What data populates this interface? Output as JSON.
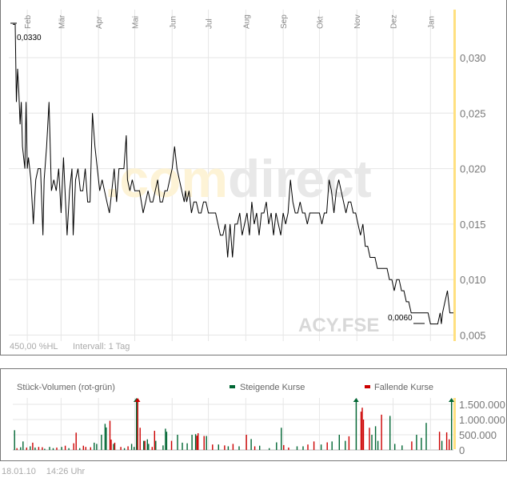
{
  "chart_data": [
    {
      "type": "line",
      "title": "",
      "months": [
        "Feb",
        "Mär",
        "Apr",
        "Mai",
        "Jun",
        "Jul",
        "Aug",
        "Sep",
        "Okt",
        "Nov",
        "Dez",
        "Jan"
      ],
      "month_days": [
        12,
        40,
        71,
        101,
        132,
        162,
        193,
        224,
        254,
        285,
        315,
        346
      ],
      "y_ticks": [
        0.03,
        0.025,
        0.02,
        0.015,
        0.01,
        0.005
      ],
      "y_tick_labels": [
        "0,030",
        "0,025",
        "0,020",
        "0,015",
        "0,010",
        "0,005"
      ],
      "ylim": [
        0.0045,
        0.0345
      ],
      "xlim": [
        0,
        365
      ],
      "grid": true,
      "x_unit": "days since start",
      "points": [
        [
          0,
          0.033
        ],
        [
          2,
          0.033
        ],
        [
          3,
          0.026
        ],
        [
          4,
          0.029
        ],
        [
          5,
          0.027
        ],
        [
          6,
          0.024
        ],
        [
          7,
          0.026
        ],
        [
          8,
          0.022
        ],
        [
          10,
          0.02
        ],
        [
          11,
          0.026
        ],
        [
          12,
          0.02
        ],
        [
          13,
          0.021
        ],
        [
          15,
          0.019
        ],
        [
          17,
          0.015
        ],
        [
          19,
          0.019
        ],
        [
          21,
          0.02
        ],
        [
          23,
          0.02
        ],
        [
          25,
          0.014
        ],
        [
          26,
          0.019
        ],
        [
          28,
          0.022
        ],
        [
          30,
          0.026
        ],
        [
          32,
          0.018
        ],
        [
          34,
          0.019
        ],
        [
          36,
          0.018
        ],
        [
          38,
          0.02
        ],
        [
          40,
          0.016
        ],
        [
          42,
          0.021
        ],
        [
          45,
          0.014
        ],
        [
          47,
          0.018
        ],
        [
          49,
          0.02
        ],
        [
          50,
          0.014
        ],
        [
          52,
          0.019
        ],
        [
          54,
          0.02
        ],
        [
          56,
          0.018
        ],
        [
          58,
          0.018
        ],
        [
          60,
          0.02
        ],
        [
          62,
          0.017
        ],
        [
          64,
          0.017
        ],
        [
          66,
          0.025
        ],
        [
          68,
          0.022
        ],
        [
          70,
          0.02
        ],
        [
          72,
          0.018
        ],
        [
          74,
          0.019
        ],
        [
          76,
          0.018
        ],
        [
          78,
          0.017
        ],
        [
          80,
          0.016
        ],
        [
          82,
          0.018
        ],
        [
          84,
          0.02
        ],
        [
          86,
          0.017
        ],
        [
          88,
          0.02
        ],
        [
          90,
          0.02
        ],
        [
          92,
          0.02
        ],
        [
          94,
          0.023
        ],
        [
          95,
          0.019
        ],
        [
          97,
          0.018
        ],
        [
          99,
          0.019
        ],
        [
          101,
          0.018
        ],
        [
          103,
          0.018
        ],
        [
          105,
          0.018
        ],
        [
          108,
          0.016
        ],
        [
          110,
          0.017
        ],
        [
          112,
          0.018
        ],
        [
          114,
          0.017
        ],
        [
          116,
          0.017
        ],
        [
          118,
          0.018
        ],
        [
          120,
          0.019
        ],
        [
          122,
          0.017
        ],
        [
          124,
          0.017
        ],
        [
          126,
          0.018
        ],
        [
          128,
          0.018
        ],
        [
          130,
          0.019
        ],
        [
          132,
          0.02
        ],
        [
          134,
          0.022
        ],
        [
          136,
          0.02
        ],
        [
          138,
          0.019
        ],
        [
          140,
          0.018
        ],
        [
          142,
          0.017
        ],
        [
          143,
          0.018
        ],
        [
          144,
          0.017
        ],
        [
          146,
          0.018
        ],
        [
          148,
          0.016
        ],
        [
          150,
          0.017
        ],
        [
          152,
          0.017
        ],
        [
          154,
          0.016
        ],
        [
          156,
          0.016
        ],
        [
          158,
          0.017
        ],
        [
          160,
          0.017
        ],
        [
          162,
          0.016
        ],
        [
          164,
          0.016
        ],
        [
          166,
          0.016
        ],
        [
          168,
          0.016
        ],
        [
          170,
          0.015
        ],
        [
          172,
          0.014
        ],
        [
          174,
          0.014
        ],
        [
          176,
          0.015
        ],
        [
          178,
          0.012
        ],
        [
          180,
          0.015
        ],
        [
          182,
          0.012
        ],
        [
          184,
          0.015
        ],
        [
          186,
          0.015
        ],
        [
          188,
          0.016
        ],
        [
          190,
          0.014
        ],
        [
          192,
          0.015
        ],
        [
          194,
          0.016
        ],
        [
          196,
          0.014
        ],
        [
          198,
          0.017
        ],
        [
          200,
          0.015
        ],
        [
          202,
          0.016
        ],
        [
          204,
          0.014
        ],
        [
          206,
          0.016
        ],
        [
          208,
          0.016
        ],
        [
          210,
          0.017
        ],
        [
          212,
          0.015
        ],
        [
          214,
          0.016
        ],
        [
          216,
          0.014
        ],
        [
          218,
          0.016
        ],
        [
          220,
          0.015
        ],
        [
          222,
          0.014
        ],
        [
          224,
          0.016
        ],
        [
          226,
          0.015
        ],
        [
          228,
          0.016
        ],
        [
          230,
          0.019
        ],
        [
          232,
          0.017
        ],
        [
          234,
          0.016
        ],
        [
          236,
          0.016
        ],
        [
          238,
          0.017
        ],
        [
          240,
          0.016
        ],
        [
          242,
          0.016
        ],
        [
          244,
          0.015
        ],
        [
          246,
          0.016
        ],
        [
          248,
          0.016
        ],
        [
          250,
          0.016
        ],
        [
          252,
          0.016
        ],
        [
          254,
          0.016
        ],
        [
          256,
          0.015
        ],
        [
          258,
          0.016
        ],
        [
          260,
          0.016
        ],
        [
          262,
          0.019
        ],
        [
          264,
          0.018
        ],
        [
          266,
          0.016
        ],
        [
          268,
          0.018
        ],
        [
          270,
          0.019
        ],
        [
          272,
          0.018
        ],
        [
          274,
          0.017
        ],
        [
          276,
          0.016
        ],
        [
          278,
          0.017
        ],
        [
          280,
          0.017
        ],
        [
          282,
          0.016
        ],
        [
          284,
          0.016
        ],
        [
          286,
          0.015
        ],
        [
          288,
          0.014
        ],
        [
          290,
          0.015
        ],
        [
          292,
          0.013
        ],
        [
          294,
          0.013
        ],
        [
          296,
          0.012
        ],
        [
          298,
          0.012
        ],
        [
          300,
          0.012
        ],
        [
          302,
          0.011
        ],
        [
          304,
          0.011
        ],
        [
          306,
          0.011
        ],
        [
          308,
          0.011
        ],
        [
          310,
          0.011
        ],
        [
          312,
          0.01
        ],
        [
          314,
          0.01
        ],
        [
          316,
          0.009
        ],
        [
          318,
          0.01
        ],
        [
          320,
          0.01
        ],
        [
          322,
          0.009
        ],
        [
          324,
          0.009
        ],
        [
          326,
          0.008
        ],
        [
          328,
          0.008
        ],
        [
          330,
          0.007
        ],
        [
          332,
          0.007
        ],
        [
          334,
          0.007
        ],
        [
          336,
          0.007
        ],
        [
          338,
          0.007
        ],
        [
          340,
          0.007
        ],
        [
          342,
          0.007
        ],
        [
          344,
          0.007
        ],
        [
          346,
          0.006
        ],
        [
          348,
          0.006
        ],
        [
          350,
          0.006
        ],
        [
          352,
          0.006
        ],
        [
          354,
          0.007
        ],
        [
          355,
          0.006
        ],
        [
          356,
          0.007
        ],
        [
          358,
          0.008
        ],
        [
          360,
          0.009
        ],
        [
          362,
          0.007
        ],
        [
          365,
          0.007
        ]
      ],
      "annotations": {
        "max_label": "0,0330",
        "min_label": "0,0060"
      },
      "footnote_left": "450,00 %HL",
      "footnote_interval": "Intervall: 1 Tag",
      "symbol": "ACY.FSE",
      "watermark_a": ".com",
      "watermark_b": "direct",
      "line_color": "#000000",
      "highlight_color": "#ffe080"
    },
    {
      "type": "bar",
      "title": "Stück-Volumen (rot-grün)",
      "legend": [
        {
          "label": "Steigende Kurse",
          "color": "#006633"
        },
        {
          "label": "Fallende Kurse",
          "color": "#cc0000"
        }
      ],
      "y_ticks": [
        0,
        500000,
        1000000,
        1500000
      ],
      "y_tick_labels": [
        "0",
        "500.000",
        "1.000.000",
        "1.500.000"
      ],
      "ylim": [
        0,
        1700000
      ],
      "xlim": [
        0,
        365
      ],
      "bars": [
        [
          1,
          650000,
          "up"
        ],
        [
          3,
          60000,
          "down"
        ],
        [
          6,
          90000,
          "up"
        ],
        [
          8,
          280000,
          "up"
        ],
        [
          11,
          80000,
          "down"
        ],
        [
          14,
          120000,
          "up"
        ],
        [
          16,
          240000,
          "down"
        ],
        [
          18,
          80000,
          "up"
        ],
        [
          21,
          100000,
          "down"
        ],
        [
          24,
          90000,
          "down"
        ],
        [
          26,
          40000,
          "up"
        ],
        [
          30,
          100000,
          "up"
        ],
        [
          33,
          60000,
          "up"
        ],
        [
          36,
          80000,
          "down"
        ],
        [
          40,
          100000,
          "up"
        ],
        [
          43,
          140000,
          "down"
        ],
        [
          46,
          60000,
          "up"
        ],
        [
          50,
          220000,
          "down"
        ],
        [
          52,
          570000,
          "down"
        ],
        [
          55,
          60000,
          "up"
        ],
        [
          58,
          140000,
          "down"
        ],
        [
          60,
          100000,
          "down"
        ],
        [
          64,
          90000,
          "down"
        ],
        [
          67,
          240000,
          "up"
        ],
        [
          69,
          200000,
          "up"
        ],
        [
          73,
          500000,
          "up"
        ],
        [
          76,
          860000,
          "up"
        ],
        [
          77,
          740000,
          "up"
        ],
        [
          80,
          960000,
          "down"
        ],
        [
          81,
          340000,
          "down"
        ],
        [
          83,
          200000,
          "up"
        ],
        [
          84,
          240000,
          "down"
        ],
        [
          89,
          100000,
          "down"
        ],
        [
          92,
          60000,
          "up"
        ],
        [
          95,
          120000,
          "down"
        ],
        [
          98,
          200000,
          "up"
        ],
        [
          100,
          100000,
          "up"
        ],
        [
          102,
          2000000,
          "up"
        ],
        [
          103,
          2000000,
          "down"
        ],
        [
          105,
          730000,
          "down"
        ],
        [
          108,
          300000,
          "up"
        ],
        [
          109,
          300000,
          "down"
        ],
        [
          111,
          350000,
          "up"
        ],
        [
          112,
          200000,
          "up"
        ],
        [
          115,
          100000,
          "down"
        ],
        [
          117,
          630000,
          "down"
        ],
        [
          118,
          300000,
          "up"
        ],
        [
          124,
          150000,
          "up"
        ],
        [
          126,
          700000,
          "up"
        ],
        [
          127,
          600000,
          "up"
        ],
        [
          131,
          300000,
          "down"
        ],
        [
          136,
          500000,
          "up"
        ],
        [
          140,
          240000,
          "up"
        ],
        [
          144,
          220000,
          "up"
        ],
        [
          148,
          500000,
          "up"
        ],
        [
          151,
          520000,
          "up"
        ],
        [
          152,
          470000,
          "down"
        ],
        [
          153,
          550000,
          "down"
        ],
        [
          158,
          460000,
          "down"
        ],
        [
          160,
          460000,
          "up"
        ],
        [
          165,
          180000,
          "down"
        ],
        [
          170,
          180000,
          "up"
        ],
        [
          175,
          150000,
          "down"
        ],
        [
          178,
          120000,
          "up"
        ],
        [
          182,
          200000,
          "down"
        ],
        [
          187,
          120000,
          "up"
        ],
        [
          193,
          500000,
          "down"
        ],
        [
          197,
          360000,
          "up"
        ],
        [
          200,
          120000,
          "down"
        ],
        [
          204,
          140000,
          "up"
        ],
        [
          212,
          60000,
          "up"
        ],
        [
          218,
          250000,
          "up"
        ],
        [
          222,
          730000,
          "up"
        ],
        [
          224,
          160000,
          "down"
        ],
        [
          228,
          80000,
          "down"
        ],
        [
          235,
          120000,
          "up"
        ],
        [
          240,
          120000,
          "up"
        ],
        [
          244,
          180000,
          "down"
        ],
        [
          249,
          280000,
          "down"
        ],
        [
          255,
          180000,
          "up"
        ],
        [
          260,
          250000,
          "down"
        ],
        [
          264,
          280000,
          "up"
        ],
        [
          270,
          500000,
          "up"
        ],
        [
          275,
          300000,
          "up"
        ],
        [
          278,
          450000,
          "down"
        ],
        [
          284,
          2000000,
          "up"
        ],
        [
          288,
          1260000,
          "down"
        ],
        [
          289,
          1390000,
          "down"
        ],
        [
          290,
          1000000,
          "down"
        ],
        [
          295,
          730000,
          "down"
        ],
        [
          297,
          500000,
          "up"
        ],
        [
          300,
          780000,
          "up"
        ],
        [
          302,
          300000,
          "up"
        ],
        [
          305,
          1160000,
          "down"
        ],
        [
          312,
          1120000,
          "up"
        ],
        [
          316,
          200000,
          "up"
        ],
        [
          322,
          150000,
          "up"
        ],
        [
          330,
          280000,
          "down"
        ],
        [
          334,
          500000,
          "up"
        ],
        [
          338,
          400000,
          "up"
        ],
        [
          342,
          890000,
          "up"
        ],
        [
          353,
          600000,
          "down"
        ],
        [
          355,
          300000,
          "up"
        ],
        [
          359,
          580000,
          "down"
        ],
        [
          361,
          350000,
          "down"
        ],
        [
          363,
          1800000,
          "up"
        ]
      ]
    }
  ],
  "footer": {
    "date": "18.01.10",
    "time": "14:26 Uhr"
  }
}
